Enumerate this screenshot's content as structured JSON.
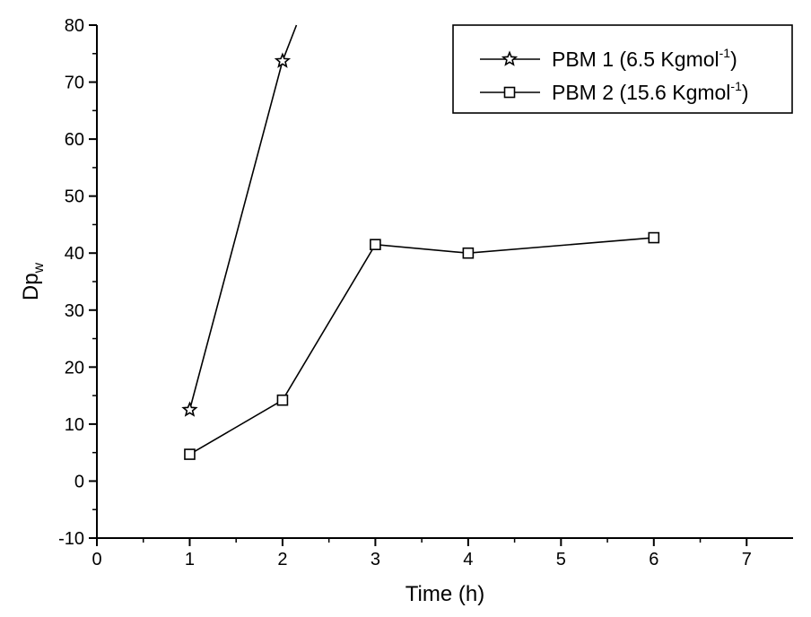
{
  "chart_data": {
    "type": "line",
    "xlabel": "Time (h)",
    "ylabel": "Dp",
    "ylabel_sub": "w",
    "xlim": [
      0,
      7.5
    ],
    "ylim": [
      -10,
      80
    ],
    "xticks": [
      0,
      1,
      2,
      3,
      4,
      5,
      6,
      7
    ],
    "yticks": [
      -10,
      0,
      10,
      20,
      30,
      40,
      50,
      60,
      70,
      80
    ],
    "grid": false,
    "legend_position": "top-right",
    "series": [
      {
        "name": "PBM 1 (6.5 Kgmol",
        "name_sup": "-1",
        "name_end": ")",
        "marker": "star",
        "x": [
          1,
          2
        ],
        "y": [
          12.5,
          73.7
        ],
        "line_extends_to": [
          2.15,
          80
        ]
      },
      {
        "name": "PBM 2 (15.6 Kgmol",
        "name_sup": "-1",
        "name_end": ")",
        "marker": "square",
        "x": [
          1,
          2,
          3,
          4,
          6
        ],
        "y": [
          4.7,
          14.2,
          41.5,
          40.0,
          42.7
        ]
      }
    ],
    "colors": {
      "line": "#000000",
      "marker_fill": "#ffffff"
    }
  }
}
